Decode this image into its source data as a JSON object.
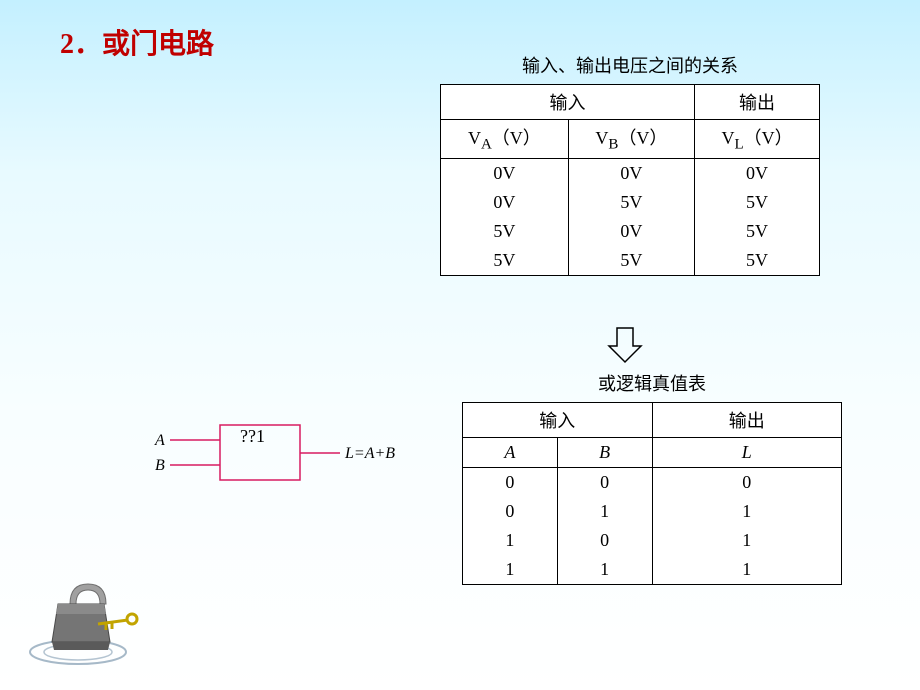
{
  "title": "2．或门电路",
  "voltage_table": {
    "caption": "输入、输出电压之间的关系",
    "header_input": "输入",
    "header_output": "输出",
    "col_va": "V<sub>A</sub>（V）",
    "col_vb": "V<sub>B</sub>（V）",
    "col_vl": "V<sub>L</sub>（V）",
    "rows": [
      [
        "0V",
        "0V",
        "0V"
      ],
      [
        "0V",
        "5V",
        "5V"
      ],
      [
        "5V",
        "0V",
        "5V"
      ],
      [
        "5V",
        "5V",
        "5V"
      ]
    ],
    "border_color": "#000000",
    "cell_fontsize": 18
  },
  "truth_table": {
    "caption": "或逻辑真值表",
    "header_input": "输入",
    "header_output": "输出",
    "col_a": "A",
    "col_b": "B",
    "col_l": "L",
    "rows": [
      [
        "0",
        "0",
        "0"
      ],
      [
        "0",
        "1",
        "1"
      ],
      [
        "1",
        "0",
        "1"
      ],
      [
        "1",
        "1",
        "1"
      ]
    ],
    "border_color": "#000000",
    "cell_fontsize": 18
  },
  "gate": {
    "label_a": "A",
    "label_b": "B",
    "symbol_text": "??1",
    "output_expr": "L=A+B",
    "stroke_color": "#d81b60",
    "text_color": "#000000",
    "label_fontsize": 16,
    "symbol_fontsize": 18
  },
  "padlock": {
    "body_color": "#757575",
    "shackle_color": "#a0a0a0",
    "swirl_color": "#6a8aa3",
    "key_color": "#c2a400"
  },
  "colors": {
    "title": "#c00000",
    "bg_top": "#c4f0ff",
    "bg_bottom": "#ffffff"
  }
}
